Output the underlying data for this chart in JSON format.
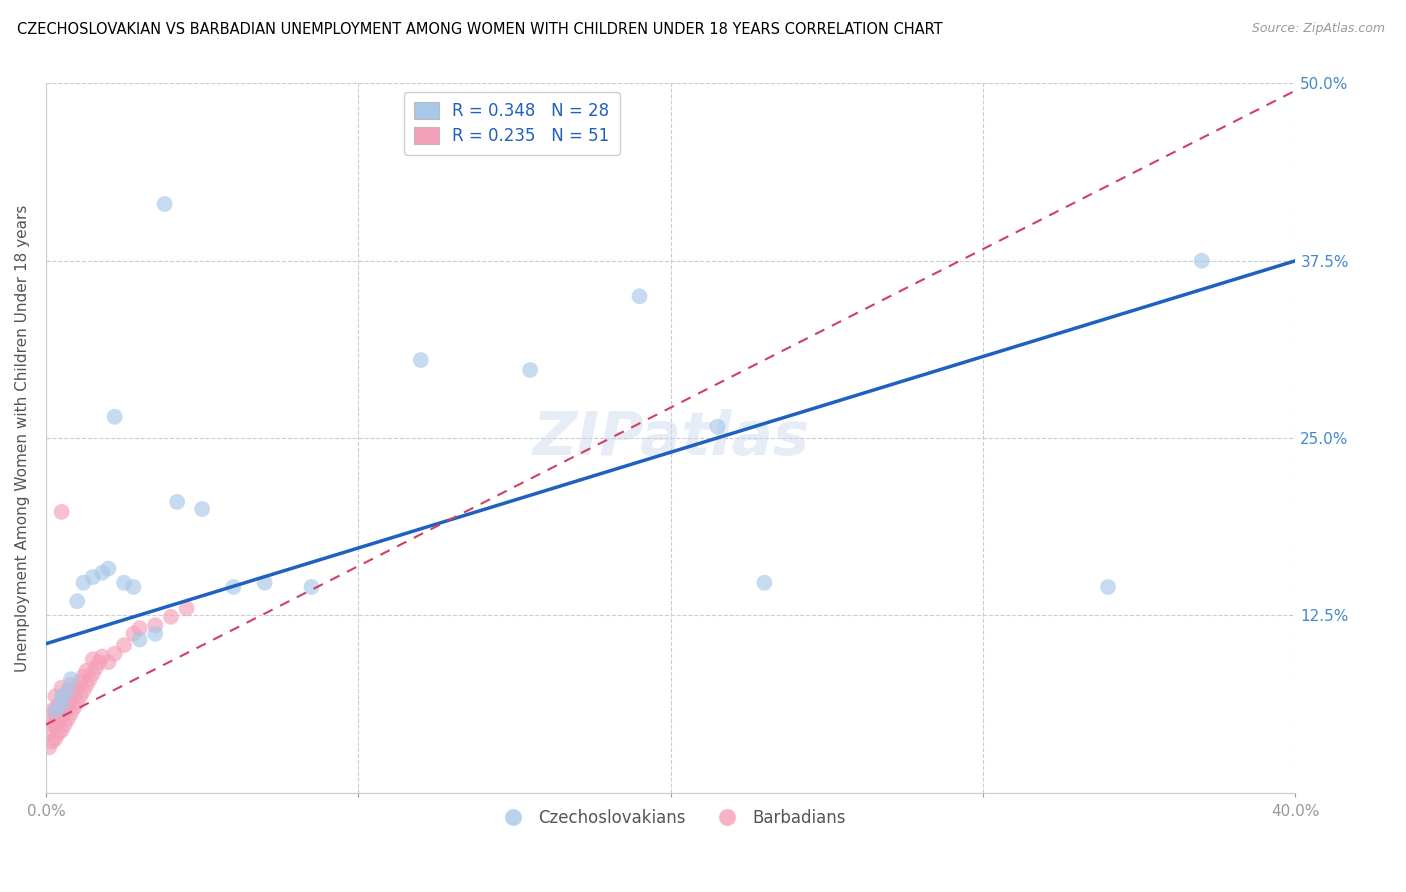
{
  "title": "CZECHOSLOVAKIAN VS BARBADIAN UNEMPLOYMENT AMONG WOMEN WITH CHILDREN UNDER 18 YEARS CORRELATION CHART",
  "source": "Source: ZipAtlas.com",
  "ylabel": "Unemployment Among Women with Children Under 18 years",
  "xlim": [
    0,
    0.4
  ],
  "ylim": [
    0,
    0.5
  ],
  "czech_R": 0.348,
  "czech_N": 28,
  "barb_R": 0.235,
  "barb_N": 51,
  "blue_color": "#a8c8e8",
  "pink_color": "#f4a0b8",
  "blue_line_color": "#2060c0",
  "pink_line_color": "#d04060",
  "background_color": "#ffffff",
  "grid_color": "#cccccc",
  "right_tick_color": "#4488cc",
  "czech_x": [
    0.003,
    0.005,
    0.005,
    0.007,
    0.008,
    0.01,
    0.012,
    0.015,
    0.018,
    0.02,
    0.022,
    0.025,
    0.028,
    0.03,
    0.035,
    0.038,
    0.042,
    0.05,
    0.06,
    0.07,
    0.085,
    0.12,
    0.155,
    0.19,
    0.215,
    0.23,
    0.34,
    0.37
  ],
  "czech_y": [
    0.058,
    0.062,
    0.068,
    0.072,
    0.08,
    0.135,
    0.148,
    0.152,
    0.155,
    0.158,
    0.265,
    0.148,
    0.145,
    0.108,
    0.112,
    0.415,
    0.205,
    0.2,
    0.145,
    0.148,
    0.145,
    0.305,
    0.298,
    0.35,
    0.258,
    0.148,
    0.145,
    0.375
  ],
  "barb_x": [
    0.001,
    0.001,
    0.001,
    0.002,
    0.002,
    0.002,
    0.003,
    0.003,
    0.003,
    0.003,
    0.004,
    0.004,
    0.004,
    0.005,
    0.005,
    0.005,
    0.005,
    0.006,
    0.006,
    0.006,
    0.007,
    0.007,
    0.007,
    0.008,
    0.008,
    0.008,
    0.009,
    0.009,
    0.01,
    0.01,
    0.011,
    0.011,
    0.012,
    0.012,
    0.013,
    0.013,
    0.014,
    0.015,
    0.015,
    0.016,
    0.017,
    0.018,
    0.02,
    0.022,
    0.025,
    0.028,
    0.03,
    0.035,
    0.04,
    0.045,
    0.005
  ],
  "barb_y": [
    0.032,
    0.042,
    0.052,
    0.036,
    0.048,
    0.058,
    0.038,
    0.048,
    0.058,
    0.068,
    0.042,
    0.052,
    0.062,
    0.044,
    0.054,
    0.064,
    0.074,
    0.048,
    0.058,
    0.068,
    0.052,
    0.062,
    0.072,
    0.056,
    0.066,
    0.076,
    0.06,
    0.07,
    0.064,
    0.074,
    0.068,
    0.078,
    0.072,
    0.082,
    0.076,
    0.086,
    0.08,
    0.084,
    0.094,
    0.088,
    0.092,
    0.096,
    0.092,
    0.098,
    0.104,
    0.112,
    0.116,
    0.118,
    0.124,
    0.13,
    0.198
  ],
  "blue_line_x": [
    0.0,
    0.4
  ],
  "blue_line_y": [
    0.105,
    0.375
  ],
  "pink_line_x": [
    0.0,
    0.4
  ],
  "pink_line_y": [
    0.048,
    0.495
  ]
}
